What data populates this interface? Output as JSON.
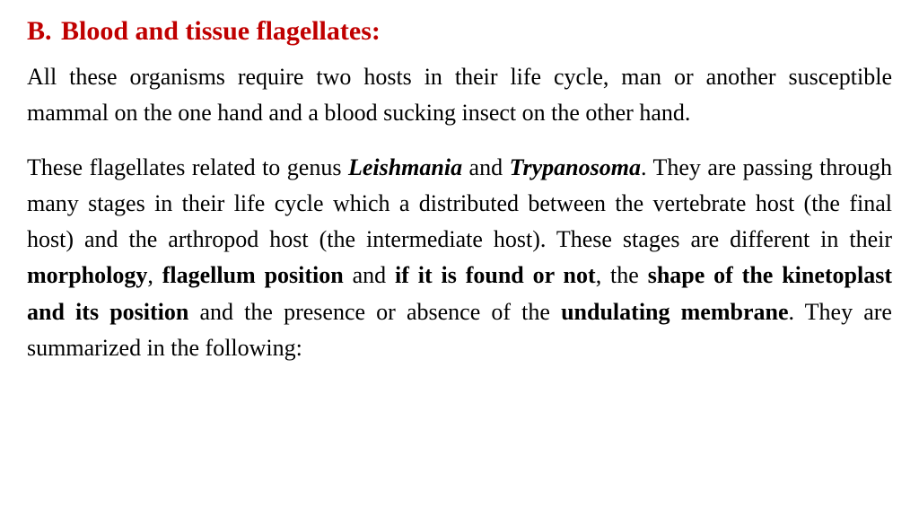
{
  "heading": {
    "label": "B.",
    "title": "Blood and tissue flagellates:",
    "color": "#c00000",
    "fontsize": 30,
    "font_weight": "bold"
  },
  "body": {
    "fontsize": 26,
    "color": "#000000",
    "line_height": 1.55,
    "align": "justify"
  },
  "p1": {
    "t1": "All these organisms require two hosts in their life cycle, man or another susceptible mammal on the one hand and a blood sucking insect on the other hand."
  },
  "p2": {
    "t1": "These flagellates related to genus ",
    "bi1": "Leishmania",
    "t2": " and ",
    "bi2": "Trypanosoma",
    "t3": ". They are passing through many stages in their life cycle which a distributed between the vertebrate host (the final host) and the arthropod host (the intermediate host). These stages are different in their ",
    "b1": "morphology",
    "t4": ", ",
    "b2": "flagellum position",
    "t5": " and ",
    "b3": "if it is found or not",
    "t6": ", the ",
    "b4": "shape of the kinetoplast and its position",
    "t7": " and the presence or absence of the ",
    "b5": "undulating membrane",
    "t8": ". They are summarized in the following:"
  },
  "background_color": "#ffffff"
}
